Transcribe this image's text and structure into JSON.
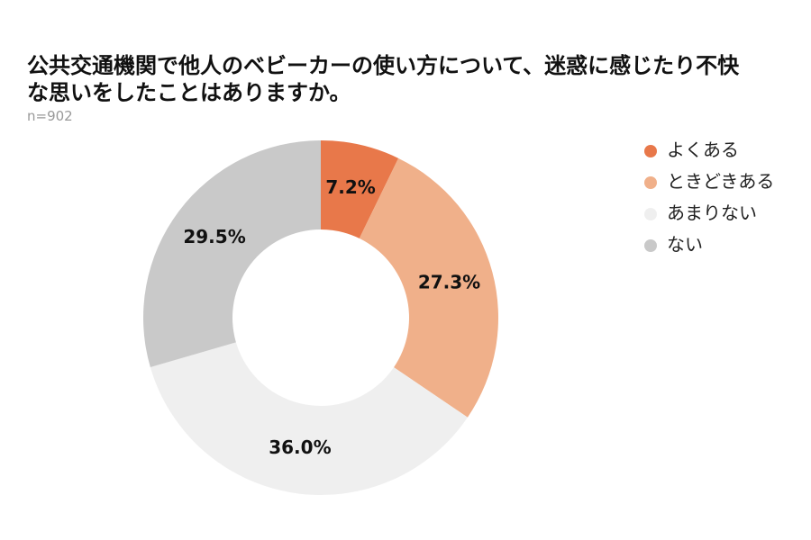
{
  "chart_data": {
    "type": "donut",
    "title": "公共交通機関で他人のベビーカーの使い方について、迷惑に感じたり不快な思いをしたことはありますか。",
    "subtitle": "n=902",
    "categories": [
      "よくある",
      "ときどきある",
      "あまりない",
      "ない"
    ],
    "values": [
      7.2,
      27.3,
      36.0,
      29.5
    ],
    "value_labels": [
      "7.2%",
      "27.3%",
      "36.0%",
      "29.5%"
    ],
    "colors": [
      "#e8784a",
      "#f0b08a",
      "#efefef",
      "#c9c9c9"
    ],
    "legend": "top-right"
  }
}
